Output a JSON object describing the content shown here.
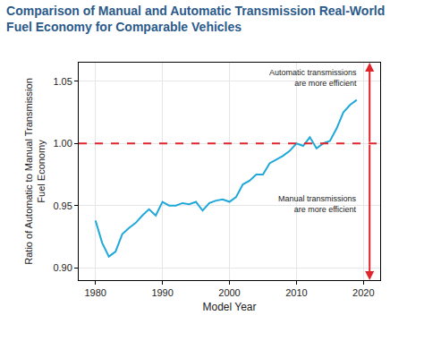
{
  "chart_data": {
    "type": "line",
    "title": "Comparison of Manual and Automatic Transmission Real-World\nFuel Economy for Comparable Vehicles",
    "x_label": "Model Year",
    "y_label": "Ratio of Automatic to Manual Transmission\nFuel Economy",
    "x": [
      1980,
      1981,
      1982,
      1983,
      1984,
      1985,
      1986,
      1987,
      1988,
      1989,
      1990,
      1991,
      1992,
      1993,
      1994,
      1995,
      1996,
      1997,
      1998,
      1999,
      2000,
      2001,
      2002,
      2003,
      2004,
      2005,
      2006,
      2007,
      2008,
      2009,
      2010,
      2011,
      2012,
      2013,
      2014,
      2015,
      2016,
      2017,
      2018,
      2019
    ],
    "values": [
      0.938,
      0.92,
      0.909,
      0.913,
      0.927,
      0.932,
      0.936,
      0.942,
      0.947,
      0.942,
      0.953,
      0.95,
      0.95,
      0.952,
      0.951,
      0.953,
      0.946,
      0.952,
      0.954,
      0.955,
      0.953,
      0.957,
      0.967,
      0.97,
      0.975,
      0.975,
      0.984,
      0.987,
      0.99,
      0.994,
      1.0,
      0.998,
      1.005,
      0.996,
      1.0,
      1.002,
      1.012,
      1.025,
      1.031,
      1.035
    ],
    "color": "#1fa8d9",
    "xlim": [
      1977.5,
      2022.5
    ],
    "xticks": [
      1980,
      1990,
      2000,
      2010,
      2020
    ],
    "ylim": [
      0.89,
      1.065
    ],
    "yticks": [
      {
        "value": 0.9,
        "label": "0.90"
      },
      {
        "value": 0.95,
        "label": "0.95"
      },
      {
        "value": 1.0,
        "label": "1.00"
      },
      {
        "value": 1.05,
        "label": "1.05"
      }
    ],
    "grid": true,
    "reference_line": {
      "value": 1.0,
      "color": "#e0242b",
      "line_style": "dashed"
    },
    "annotations": [
      {
        "text": "Automatic transmissions\nare more efficient"
      },
      {
        "text": "Manual transmissions\nare more efficient"
      }
    ]
  }
}
